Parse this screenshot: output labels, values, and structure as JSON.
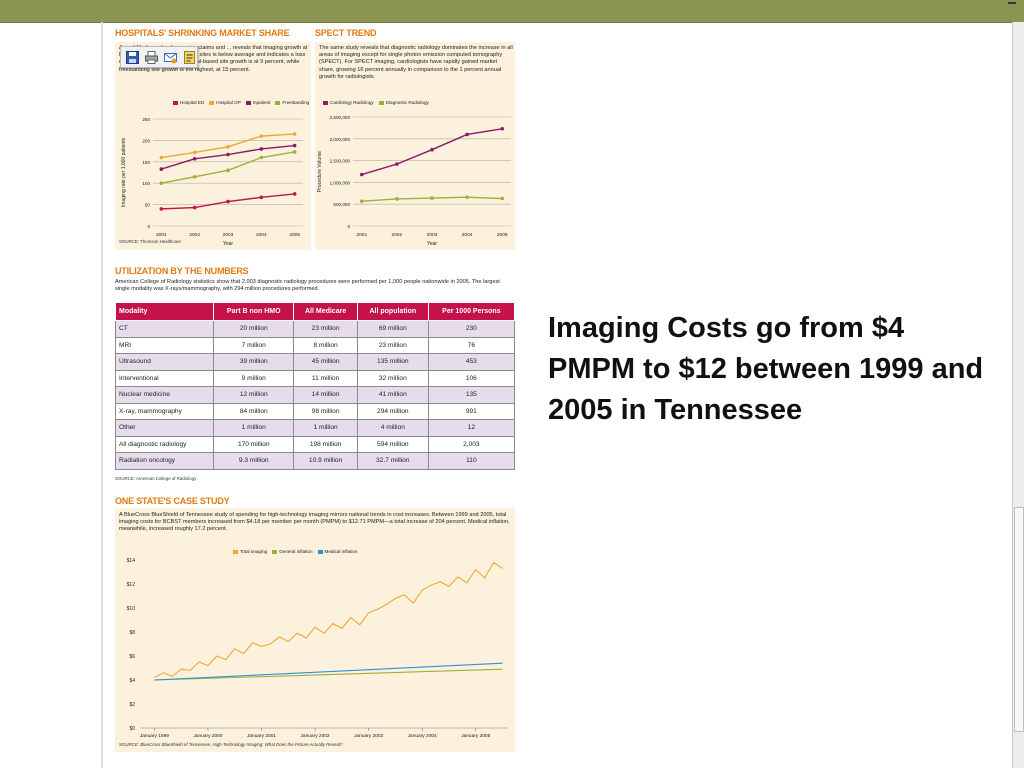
{
  "slide": {
    "caption": "Imaging Costs go from $4 PMPM to $12 between 1999 and 2005 in Tennessee"
  },
  "toolbar": {
    "buttons": [
      "save-icon",
      "print-icon",
      "email-icon",
      "edit-icon"
    ]
  },
  "hospitals": {
    "title": "HOSPITALS' SHRINKING MARKET SHARE",
    "para": "A ... of Medicare fee-for-service claims and ... reveals that imaging growth at hospital outpatient and inpatient sites is below average and indicates a loss of market share. Overall, hospital-based site growth is at 9 percent, while freestanding site growth is the highest, at 15 percent.",
    "source": "SOURCE: Thomson Healthcare",
    "chart_data": {
      "type": "line",
      "x": [
        "2001",
        "2002",
        "2003",
        "2004",
        "2005"
      ],
      "xlabel": "Year",
      "ylabel": "Imaging rate per 1,000 patients",
      "ylim": [
        0,
        250
      ],
      "yticks": [
        "0",
        "50",
        "100",
        "150",
        "200",
        "250"
      ],
      "series": [
        {
          "name": "Hospital ED",
          "color": "#c4124a",
          "values": [
            40,
            43,
            57,
            67,
            75
          ]
        },
        {
          "name": "Hospital OP",
          "color": "#f0a830",
          "values": [
            160,
            172,
            185,
            210,
            215
          ]
        },
        {
          "name": "Inpatient",
          "color": "#8a1a6a",
          "values": [
            133,
            157,
            167,
            180,
            188
          ]
        },
        {
          "name": "Freestanding",
          "color": "#9ab23a",
          "values": [
            100,
            115,
            130,
            160,
            173
          ]
        }
      ],
      "legend": "top"
    }
  },
  "spect": {
    "title": "SPECT TREND",
    "para": "The same study reveals that diagnostic radiology dominates the increase in all areas of imaging except for single photon emission computed tomography (SPECT). For SPECT imaging, cardiologists have rapidly gained market share, growing 16 percent annually in comparison to the 1 percent annual growth for radiologists.",
    "chart_data": {
      "type": "line",
      "x": [
        "2001",
        "2002",
        "2003",
        "2004",
        "2005"
      ],
      "xlabel": "Year",
      "ylabel": "Procedure Volume",
      "ylim": [
        0,
        2500000
      ],
      "yticks": [
        "0",
        "500,000",
        "1,000,000",
        "1,500,000",
        "2,000,000",
        "2,500,000"
      ],
      "series": [
        {
          "name": "Cardiology Radiology",
          "color": "#8a1a6a",
          "values": [
            1180000,
            1420000,
            1750000,
            2100000,
            2230000
          ]
        },
        {
          "name": "Diagnostic Radiology",
          "color": "#9ab23a",
          "values": [
            570000,
            620000,
            640000,
            660000,
            630000
          ]
        }
      ],
      "legend": "top"
    }
  },
  "utilization": {
    "title": "UTILIZATION BY THE NUMBERS",
    "para": "American College of Radiology statistics show that 2,003 diagnostic radiology procedures were performed per 1,000 people nationwide in 2005. The largest single modality was X-rays/mammography, with 294 million procedures performed.",
    "source": "SOURCE: American College of Radiology",
    "chart_data": {
      "type": "table",
      "columns": [
        "Modality",
        "Part B non HMO",
        "All Medicare",
        "All population",
        "Per 1000 Persons"
      ],
      "rows": [
        [
          "CT",
          "20 million",
          "23 million",
          "69 million",
          "230"
        ],
        [
          "MRI",
          "7 million",
          "8 million",
          "23 million",
          "76"
        ],
        [
          "Ultrasound",
          "39 million",
          "45 million",
          "135 million",
          "453"
        ],
        [
          "Interventional",
          "9 million",
          "11 million",
          "32 million",
          "106"
        ],
        [
          "Nuclear medicine",
          "12 million",
          "14 million",
          "41 million",
          "135"
        ],
        [
          "X-ray, mammography",
          "84 million",
          "98 million",
          "294 million",
          "991"
        ],
        [
          "Other",
          "1 million",
          "1 million",
          "4 million",
          "12"
        ],
        [
          "All diagnostic radiology",
          "170 million",
          "198 million",
          "594 million",
          "2,003"
        ],
        [
          "Radiation oncology",
          "9.3 million",
          "10.9 million",
          "32.7 million",
          "110"
        ]
      ]
    }
  },
  "state": {
    "title": "ONE STATE'S CASE STUDY",
    "para": "A BlueCross BlueShield of Tennessee study of spending for high-technology imaging mirrors national trends in cost increases. Between 1999 and 2005, total imaging costs for BCBST members increased from $4.18 per member per month (PMPM) to $12.71 PMPM—a total increase of 204 percent. Medical inflation, meanwhile, increased roughly 17.2 percent.",
    "source": "SOURCE: BlueCross BlueShield of Tennessee, High-Technology Imaging: What Does the Picture Actually Reveal?",
    "chart_data": {
      "type": "line",
      "x_ticks": [
        "January 1999",
        "January 2000",
        "January 2001",
        "January 2002",
        "January 2003",
        "January 2004",
        "January 2005"
      ],
      "ylim": [
        0,
        14
      ],
      "yticks": [
        "$0",
        "$2",
        "$4",
        "$6",
        "$8",
        "$10",
        "$12",
        "$14"
      ],
      "series": [
        {
          "name": "Total imaging",
          "color": "#f0a830",
          "x_months_from_jan1999": [
            0,
            2,
            4,
            6,
            8,
            10,
            12,
            14,
            16,
            18,
            20,
            22,
            24,
            26,
            28,
            30,
            32,
            34,
            36,
            38,
            40,
            42,
            44,
            46,
            48,
            50,
            52,
            54,
            56,
            58,
            60,
            62,
            64,
            66,
            68,
            70,
            72,
            74,
            76,
            78
          ],
          "values": [
            4.2,
            4.6,
            4.3,
            4.9,
            4.8,
            5.5,
            5.2,
            6.0,
            5.7,
            6.6,
            6.2,
            7.1,
            6.8,
            7.0,
            7.6,
            7.2,
            7.9,
            7.5,
            8.4,
            7.9,
            8.7,
            8.3,
            9.2,
            8.6,
            9.6,
            9.9,
            10.3,
            10.8,
            11.1,
            10.4,
            11.5,
            11.9,
            12.2,
            11.8,
            12.6,
            12.1,
            13.2,
            12.5,
            13.8,
            13.3
          ]
        },
        {
          "name": "General inflation",
          "color": "#9ab23a",
          "x_months_from_jan1999": [
            0,
            78
          ],
          "values": [
            4.0,
            4.9
          ]
        },
        {
          "name": "Medical inflation",
          "color": "#2f8fd8",
          "x_months_from_jan1999": [
            0,
            78
          ],
          "values": [
            4.0,
            5.4
          ]
        }
      ],
      "legend": "top"
    }
  }
}
